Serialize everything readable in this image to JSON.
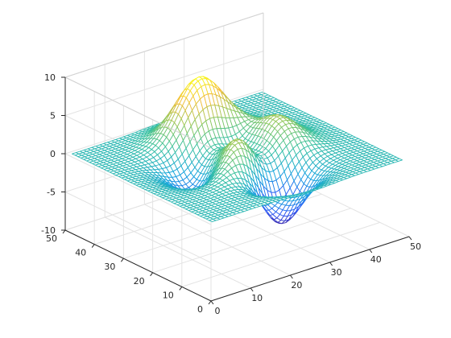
{
  "chart_data": {
    "type": "mesh3d",
    "surface": "peaks",
    "grid": {
      "x_count": 49,
      "y_count": 49
    },
    "x": {
      "range": [
        0,
        50
      ],
      "ticks": [
        0,
        10,
        20,
        30,
        40,
        50
      ]
    },
    "y": {
      "range": [
        0,
        50
      ],
      "ticks": [
        0,
        10,
        20,
        30,
        40,
        50
      ]
    },
    "z": {
      "range": [
        -10,
        10
      ],
      "ticks": [
        -10,
        -5,
        0,
        5,
        10
      ],
      "min": -6.55,
      "max": 8.1
    },
    "colormap": [
      "#3e26a8",
      "#2f5cf7",
      "#16a5dd",
      "#39c1a1",
      "#91c85c",
      "#f2be3c",
      "#f9fb15"
    ],
    "grid_lines": true,
    "box": true
  }
}
